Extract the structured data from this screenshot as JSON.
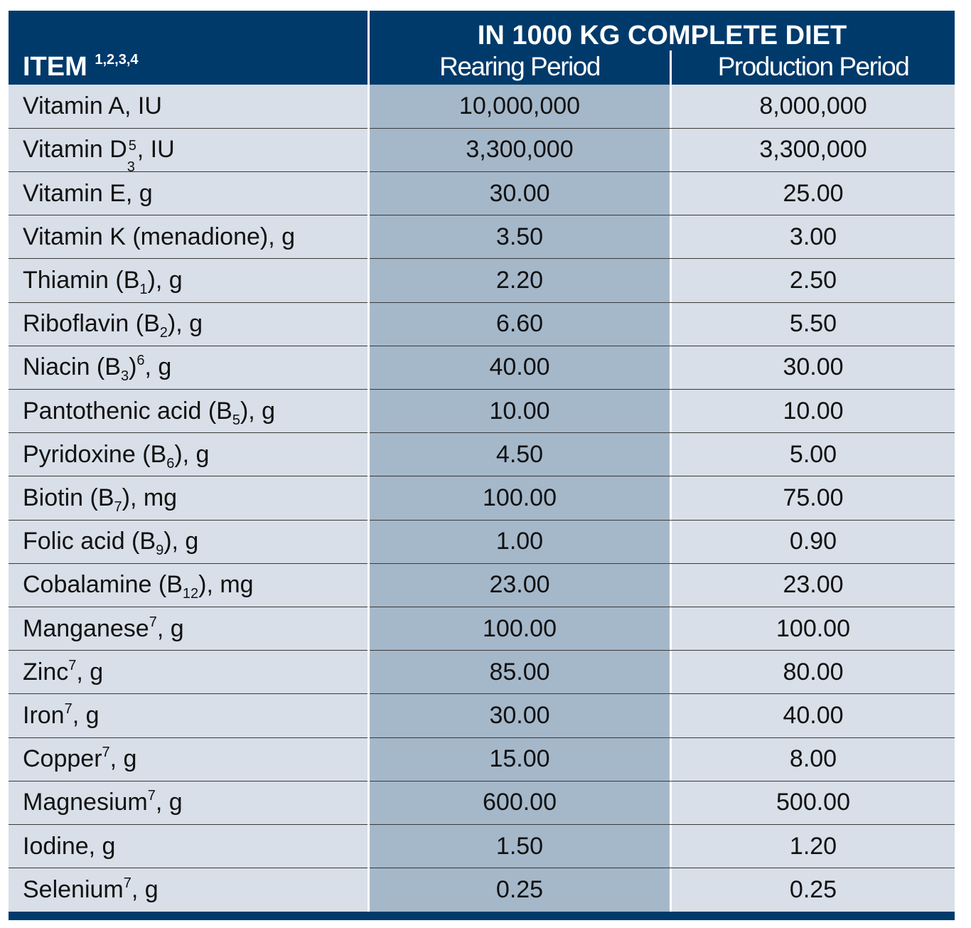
{
  "header": {
    "item": "ITEM",
    "item_notes": "1,2,3,4",
    "group": "IN 1000 KG COMPLETE DIET",
    "columns": [
      "Rearing Period",
      "Production Period"
    ]
  },
  "table": {
    "rows": [
      {
        "item": [
          "Vitamin A, IU"
        ],
        "rearing": "10,000,000",
        "production": "8,000,000"
      },
      {
        "item": [
          "Vitamin D",
          {
            "sub": "3",
            "sup": "5"
          },
          ", IU"
        ],
        "rearing": "3,300,000",
        "production": "3,300,000"
      },
      {
        "item": [
          "Vitamin E, g"
        ],
        "rearing": "30.00",
        "production": "25.00"
      },
      {
        "item": [
          "Vitamin K (menadione), g"
        ],
        "rearing": "3.50",
        "production": "3.00"
      },
      {
        "item": [
          "Thiamin (B",
          {
            "sub": "1"
          },
          "), g"
        ],
        "rearing": "2.20",
        "production": "2.50"
      },
      {
        "item": [
          "Riboflavin (B",
          {
            "sub": "2"
          },
          "), g"
        ],
        "rearing": "6.60",
        "production": "5.50"
      },
      {
        "item": [
          "Niacin (B",
          {
            "sub": "3"
          },
          ")",
          {
            "sup": "6"
          },
          ", g"
        ],
        "rearing": "40.00",
        "production": "30.00"
      },
      {
        "item": [
          "Pantothenic acid (B",
          {
            "sub": "5"
          },
          "), g"
        ],
        "rearing": "10.00",
        "production": "10.00"
      },
      {
        "item": [
          "Pyridoxine (B",
          {
            "sub": "6"
          },
          "), g"
        ],
        "rearing": "4.50",
        "production": "5.00"
      },
      {
        "item": [
          "Biotin (B",
          {
            "sub": "7"
          },
          "), mg"
        ],
        "rearing": "100.00",
        "production": "75.00"
      },
      {
        "item": [
          "Folic acid (B",
          {
            "sub": "9"
          },
          "), g"
        ],
        "rearing": "1.00",
        "production": "0.90"
      },
      {
        "item": [
          "Cobalamine (B",
          {
            "sub": "12"
          },
          "), mg"
        ],
        "rearing": "23.00",
        "production": "23.00"
      },
      {
        "item": [
          "Manganese",
          {
            "sup": "7"
          },
          ", g"
        ],
        "rearing": "100.00",
        "production": "100.00"
      },
      {
        "item": [
          "Zinc",
          {
            "sup": "7"
          },
          ", g"
        ],
        "rearing": "85.00",
        "production": "80.00"
      },
      {
        "item": [
          "Iron",
          {
            "sup": "7"
          },
          ", g"
        ],
        "rearing": "30.00",
        "production": "40.00"
      },
      {
        "item": [
          "Copper",
          {
            "sup": "7"
          },
          ", g"
        ],
        "rearing": "15.00",
        "production": "8.00"
      },
      {
        "item": [
          "Magnesium",
          {
            "sup": "7"
          },
          ", g"
        ],
        "rearing": "600.00",
        "production": "500.00"
      },
      {
        "item": [
          "Iodine, g"
        ],
        "rearing": "1.50",
        "production": "1.20"
      },
      {
        "item": [
          "Selenium",
          {
            "sup": "7"
          },
          ", g"
        ],
        "rearing": "0.25",
        "production": "0.25"
      }
    ]
  }
}
